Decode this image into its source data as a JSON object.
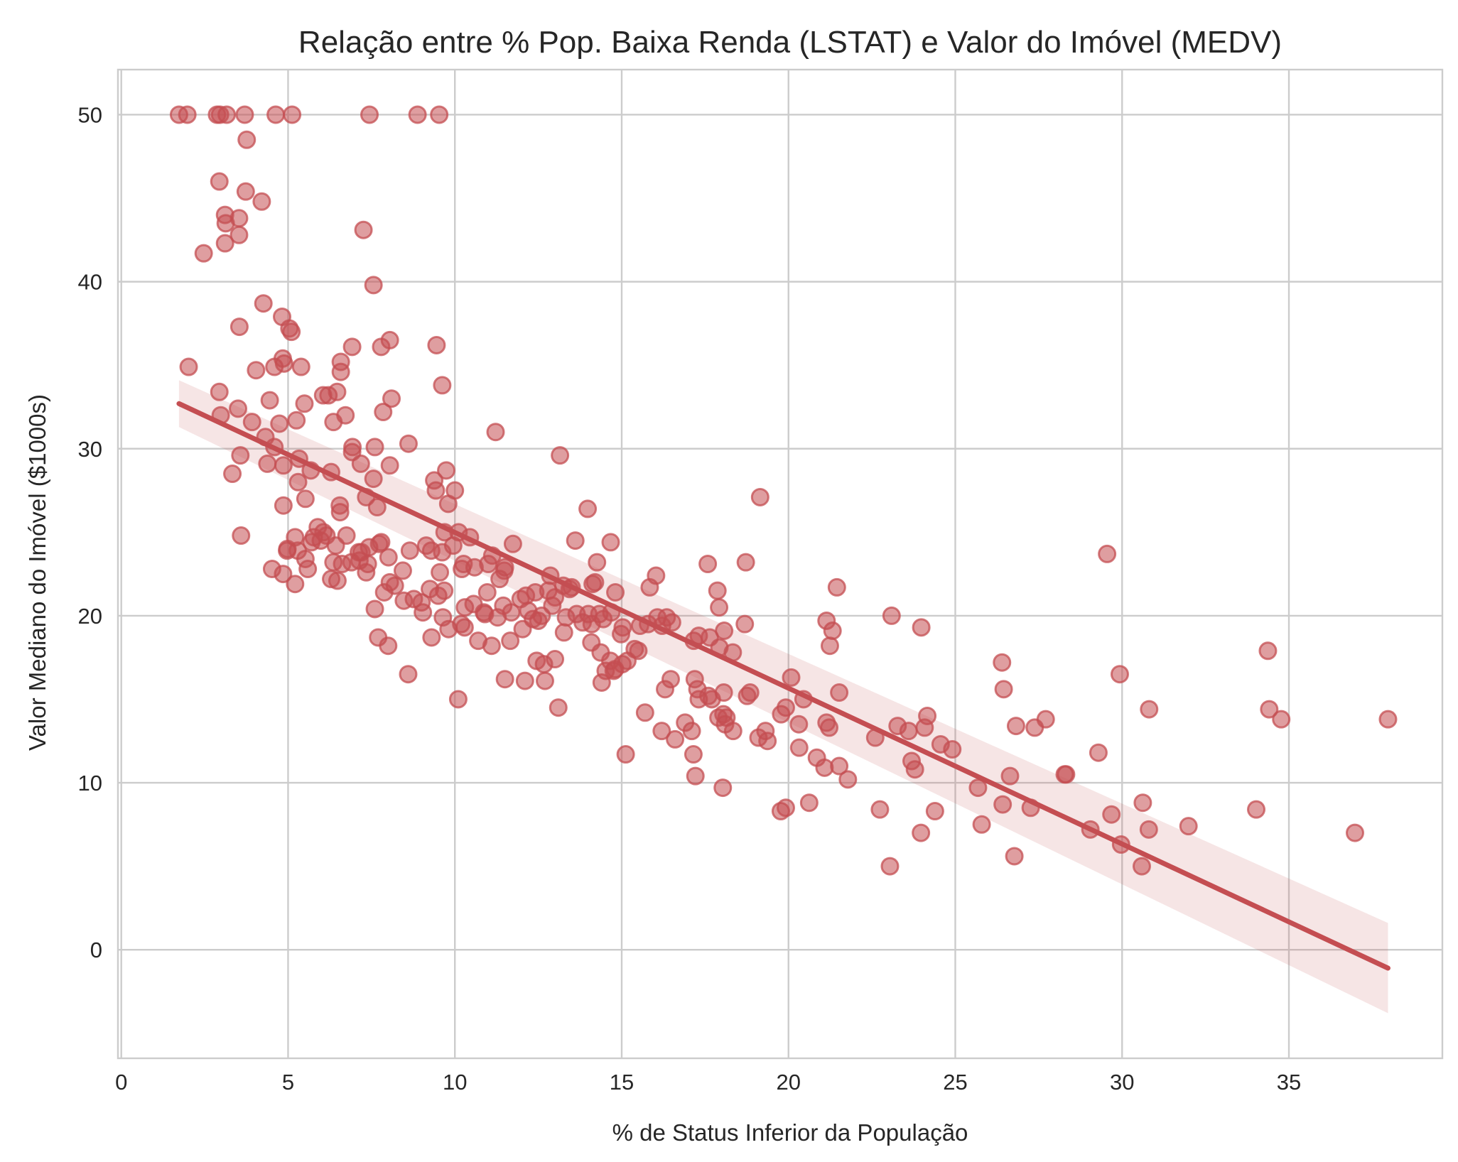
{
  "chart_data": {
    "type": "scatter",
    "title": "Relação entre % Pop. Baixa Renda (LSTAT) e Valor do Imóvel (MEDV)",
    "xlabel": "% de Status Inferior da População",
    "ylabel": "Valor Mediano do Imóvel ($1000s)",
    "xlim": [
      -0.1,
      39.6
    ],
    "ylim": [
      -6.5,
      52.7
    ],
    "xticks": [
      0,
      5,
      10,
      15,
      20,
      25,
      30,
      35
    ],
    "yticks": [
      0,
      10,
      20,
      30,
      40,
      50
    ],
    "grid": true,
    "colors": {
      "points": "#c44e52",
      "line": "#c44e52",
      "band": "#c44e52",
      "grid": "#cccccc"
    },
    "regression": {
      "x": [
        1.73,
        37.97
      ],
      "y": [
        32.7,
        -1.1
      ],
      "ci_x": [
        1.73,
        37.97
      ],
      "ci_upper": [
        34.1,
        1.6
      ],
      "ci_lower": [
        31.3,
        -3.8
      ]
    },
    "points": [
      [
        1.73,
        50
      ],
      [
        1.98,
        50
      ],
      [
        2.87,
        50
      ],
      [
        2.96,
        50
      ],
      [
        3.16,
        50
      ],
      [
        3.7,
        50
      ],
      [
        4.63,
        50
      ],
      [
        5.12,
        50
      ],
      [
        7.44,
        50
      ],
      [
        8.88,
        50
      ],
      [
        9.53,
        50
      ],
      [
        3.76,
        48.5
      ],
      [
        2.94,
        46
      ],
      [
        3.73,
        45.4
      ],
      [
        4.21,
        44.8
      ],
      [
        3.11,
        44
      ],
      [
        3.13,
        43.5
      ],
      [
        3.53,
        43.8
      ],
      [
        7.26,
        43.1
      ],
      [
        3.53,
        42.8
      ],
      [
        3.11,
        42.3
      ],
      [
        2.47,
        41.7
      ],
      [
        7.56,
        39.8
      ],
      [
        4.26,
        38.7
      ],
      [
        4.82,
        37.9
      ],
      [
        5.04,
        37.2
      ],
      [
        3.54,
        37.3
      ],
      [
        5.1,
        37
      ],
      [
        8.05,
        36.5
      ],
      [
        7.79,
        36.1
      ],
      [
        6.92,
        36.1
      ],
      [
        9.45,
        36.2
      ],
      [
        4.84,
        35.4
      ],
      [
        4.88,
        35.1
      ],
      [
        6.58,
        35.2
      ],
      [
        5.39,
        34.9
      ],
      [
        4.59,
        34.9
      ],
      [
        2.02,
        34.9
      ],
      [
        4.04,
        34.7
      ],
      [
        6.58,
        34.6
      ],
      [
        9.62,
        33.8
      ],
      [
        6.21,
        33.2
      ],
      [
        6.05,
        33.2
      ],
      [
        2.94,
        33.4
      ],
      [
        6.47,
        33.4
      ],
      [
        4.45,
        32.9
      ],
      [
        8.1,
        33
      ],
      [
        5.49,
        32.7
      ],
      [
        3.5,
        32.4
      ],
      [
        7.85,
        32.2
      ],
      [
        6.72,
        32
      ],
      [
        2.98,
        32
      ],
      [
        4.74,
        31.5
      ],
      [
        3.92,
        31.6
      ],
      [
        6.36,
        31.6
      ],
      [
        5.25,
        31.7
      ],
      [
        11.22,
        31
      ],
      [
        4.32,
        30.7
      ],
      [
        8.61,
        30.3
      ],
      [
        6.93,
        30.1
      ],
      [
        7.6,
        30.1
      ],
      [
        4.59,
        30.1
      ],
      [
        6.92,
        29.8
      ],
      [
        13.15,
        29.6
      ],
      [
        5.33,
        29.4
      ],
      [
        8.05,
        29
      ],
      [
        3.57,
        29.6
      ],
      [
        4.38,
        29.1
      ],
      [
        4.86,
        29
      ],
      [
        7.18,
        29.1
      ],
      [
        5.68,
        28.7
      ],
      [
        9.38,
        28.1
      ],
      [
        9.74,
        28.7
      ],
      [
        5.3,
        28
      ],
      [
        3.33,
        28.5
      ],
      [
        6.29,
        28.6
      ],
      [
        7.56,
        28.2
      ],
      [
        9.43,
        27.5
      ],
      [
        10.0,
        27.5
      ],
      [
        5.52,
        27
      ],
      [
        7.34,
        27.1
      ],
      [
        9.8,
        26.7
      ],
      [
        7.67,
        26.5
      ],
      [
        4.86,
        26.6
      ],
      [
        6.55,
        26.6
      ],
      [
        6.56,
        26.2
      ],
      [
        13.98,
        26.4
      ],
      [
        6.06,
        25
      ],
      [
        5.89,
        25.3
      ],
      [
        9.69,
        25
      ],
      [
        10.11,
        25
      ],
      [
        4.98,
        24
      ],
      [
        7.79,
        24.4
      ],
      [
        8.65,
        23.9
      ],
      [
        6.15,
        24.8
      ],
      [
        6.75,
        24.8
      ],
      [
        3.59,
        24.8
      ],
      [
        5.21,
        24.7
      ],
      [
        5.7,
        24.4
      ],
      [
        5.98,
        24.5
      ],
      [
        7.2,
        23.8
      ],
      [
        9.14,
        24.2
      ],
      [
        9.62,
        23.8
      ],
      [
        10.26,
        23.1
      ],
      [
        10.59,
        22.9
      ],
      [
        9.29,
        23.9
      ],
      [
        11.12,
        23.6
      ],
      [
        11.74,
        24.3
      ],
      [
        13.61,
        24.5
      ],
      [
        14.67,
        24.4
      ],
      [
        7.73,
        24.3
      ],
      [
        4.97,
        23.9
      ],
      [
        5.29,
        23.9
      ],
      [
        5.52,
        23.4
      ],
      [
        5.77,
        24.7
      ],
      [
        6.43,
        24.2
      ],
      [
        7.39,
        23.1
      ],
      [
        7.14,
        23.3
      ],
      [
        8.01,
        23.5
      ],
      [
        7.12,
        23.8
      ],
      [
        7.43,
        24.1
      ],
      [
        6.62,
        23.1
      ],
      [
        8.44,
        22.7
      ],
      [
        9.55,
        22.6
      ],
      [
        10.21,
        22.8
      ],
      [
        11.48,
        22.7
      ],
      [
        12.86,
        22.4
      ],
      [
        14.26,
        23.2
      ],
      [
        15.84,
        21.7
      ],
      [
        16.03,
        22.4
      ],
      [
        17.58,
        23.1
      ],
      [
        18.72,
        23.2
      ],
      [
        4.52,
        22.8
      ],
      [
        4.85,
        22.5
      ],
      [
        5.21,
        21.9
      ],
      [
        5.59,
        22.8
      ],
      [
        6.29,
        22.2
      ],
      [
        6.48,
        22.1
      ],
      [
        7.34,
        22.6
      ],
      [
        7.88,
        21.4
      ],
      [
        8.47,
        20.9
      ],
      [
        9.25,
        21.6
      ],
      [
        9.68,
        21.5
      ],
      [
        10.97,
        21.4
      ],
      [
        11.34,
        22.2
      ],
      [
        12.13,
        21.2
      ],
      [
        12.41,
        21.4
      ],
      [
        13.44,
        21.6
      ],
      [
        14.13,
        21.9
      ],
      [
        14.81,
        21.4
      ],
      [
        15.55,
        19.4
      ],
      [
        16.07,
        19.9
      ],
      [
        16.35,
        19.9
      ],
      [
        17.31,
        18.8
      ],
      [
        17.92,
        20.5
      ],
      [
        17.87,
        21.5
      ],
      [
        18.07,
        19.1
      ],
      [
        18.69,
        19.5
      ],
      [
        20.08,
        16.3
      ],
      [
        21.14,
        19.7
      ],
      [
        21.24,
        18.2
      ],
      [
        21.32,
        19.1
      ],
      [
        21.45,
        21.7
      ],
      [
        23.09,
        20
      ],
      [
        23.98,
        19.3
      ],
      [
        6.36,
        23.2
      ],
      [
        6.9,
        23.2
      ],
      [
        7.6,
        20.4
      ],
      [
        8.2,
        21.8
      ],
      [
        8.77,
        21
      ],
      [
        9.04,
        20.2
      ],
      [
        9.64,
        19.9
      ],
      [
        10.19,
        19.5
      ],
      [
        10.56,
        20.7
      ],
      [
        10.87,
        20.2
      ],
      [
        11.28,
        19.9
      ],
      [
        11.69,
        20.2
      ],
      [
        11.97,
        21
      ],
      [
        12.34,
        19.8
      ],
      [
        12.6,
        20
      ],
      [
        12.92,
        20.6
      ],
      [
        13.33,
        19.9
      ],
      [
        13.65,
        20.1
      ],
      [
        14.1,
        19.5
      ],
      [
        14.33,
        20.1
      ],
      [
        14.69,
        20.2
      ],
      [
        15.03,
        19.3
      ],
      [
        15.39,
        18
      ],
      [
        15.79,
        19.5
      ],
      [
        16.21,
        19.4
      ],
      [
        16.51,
        19.6
      ],
      [
        17.16,
        18.5
      ],
      [
        17.64,
        18.7
      ],
      [
        17.93,
        18.1
      ],
      [
        18.33,
        17.8
      ],
      [
        7.7,
        18.7
      ],
      [
        8.0,
        18.2
      ],
      [
        9.3,
        18.7
      ],
      [
        9.81,
        19.2
      ],
      [
        10.29,
        19.3
      ],
      [
        10.7,
        18.5
      ],
      [
        11.1,
        18.2
      ],
      [
        11.66,
        18.5
      ],
      [
        12.03,
        19.2
      ],
      [
        12.45,
        17.3
      ],
      [
        12.67,
        17.1
      ],
      [
        13.0,
        17.4
      ],
      [
        13.27,
        19
      ],
      [
        14.09,
        18.4
      ],
      [
        14.37,
        17.8
      ],
      [
        14.52,
        16.7
      ],
      [
        14.66,
        17.3
      ],
      [
        14.8,
        16.8
      ],
      [
        15.02,
        17.1
      ],
      [
        15.17,
        17.3
      ],
      [
        16.47,
        16.2
      ],
      [
        17.19,
        16.2
      ],
      [
        17.27,
        15.6
      ],
      [
        17.6,
        15.2
      ],
      [
        18.06,
        15.4
      ],
      [
        18.76,
        15.2
      ],
      [
        19.31,
        13.1
      ],
      [
        20.45,
        15
      ],
      [
        21.52,
        15.4
      ],
      [
        8.05,
        22
      ],
      [
        9.0,
        20.8
      ],
      [
        9.5,
        21.2
      ],
      [
        10.3,
        20.5
      ],
      [
        10.9,
        20.1
      ],
      [
        11.45,
        20.6
      ],
      [
        12.5,
        19.7
      ],
      [
        13.0,
        21.1
      ],
      [
        13.5,
        21.7
      ],
      [
        14.0,
        20.1
      ],
      [
        14.45,
        19.8
      ],
      [
        14.98,
        18.9
      ],
      [
        15.5,
        17.9
      ],
      [
        8.6,
        16.5
      ],
      [
        10.1,
        15
      ],
      [
        11.5,
        16.2
      ],
      [
        12.1,
        16.1
      ],
      [
        12.7,
        16.1
      ],
      [
        13.1,
        14.5
      ],
      [
        14.4,
        16
      ],
      [
        14.76,
        16.7
      ],
      [
        15.12,
        11.7
      ],
      [
        15.7,
        14.2
      ],
      [
        16.2,
        13.1
      ],
      [
        16.3,
        15.6
      ],
      [
        16.6,
        12.6
      ],
      [
        16.9,
        13.6
      ],
      [
        17.1,
        13.1
      ],
      [
        17.15,
        11.7
      ],
      [
        17.21,
        10.4
      ],
      [
        17.31,
        15
      ],
      [
        17.7,
        15
      ],
      [
        17.9,
        13.9
      ],
      [
        18.05,
        14.1
      ],
      [
        18.1,
        13.5
      ],
      [
        18.14,
        13.9
      ],
      [
        18.34,
        13.1
      ],
      [
        18.85,
        15.4
      ],
      [
        19.1,
        12.7
      ],
      [
        19.37,
        12.5
      ],
      [
        19.78,
        14.1
      ],
      [
        19.92,
        14.5
      ],
      [
        20.31,
        13.5
      ],
      [
        20.32,
        12.1
      ],
      [
        20.62,
        8.8
      ],
      [
        20.85,
        11.5
      ],
      [
        21.08,
        10.9
      ],
      [
        21.14,
        13.6
      ],
      [
        21.22,
        13.3
      ],
      [
        21.52,
        11
      ],
      [
        21.78,
        10.2
      ],
      [
        22.6,
        12.7
      ],
      [
        22.74,
        8.4
      ],
      [
        23.04,
        5
      ],
      [
        23.27,
        13.4
      ],
      [
        23.69,
        11.3
      ],
      [
        23.6,
        13.1
      ],
      [
        23.79,
        10.8
      ],
      [
        24.08,
        13.3
      ],
      [
        24.16,
        14
      ],
      [
        24.39,
        8.3
      ],
      [
        24.56,
        12.3
      ],
      [
        24.91,
        12
      ],
      [
        25.68,
        9.7
      ],
      [
        25.79,
        7.5
      ],
      [
        26.42,
        8.7
      ],
      [
        26.45,
        15.6
      ],
      [
        26.64,
        10.4
      ],
      [
        26.77,
        5.6
      ],
      [
        26.82,
        13.4
      ],
      [
        27.26,
        8.5
      ],
      [
        27.38,
        13.3
      ],
      [
        27.71,
        13.8
      ],
      [
        28.28,
        10.5
      ],
      [
        28.32,
        10.5
      ],
      [
        29.05,
        7.2
      ],
      [
        29.29,
        11.8
      ],
      [
        29.55,
        23.7
      ],
      [
        29.68,
        8.1
      ],
      [
        29.93,
        16.5
      ],
      [
        29.97,
        6.3
      ],
      [
        30.59,
        5
      ],
      [
        30.62,
        8.8
      ],
      [
        30.81,
        14.4
      ],
      [
        31.99,
        7.4
      ],
      [
        34.02,
        8.4
      ],
      [
        34.37,
        17.9
      ],
      [
        34.41,
        14.4
      ],
      [
        34.77,
        13.8
      ],
      [
        36.98,
        7
      ],
      [
        37.97,
        13.8
      ],
      [
        26.4,
        17.2
      ],
      [
        19.15,
        27.1
      ],
      [
        18.03,
        9.7
      ],
      [
        19.77,
        8.3
      ],
      [
        19.92,
        8.5
      ],
      [
        23.97,
        7
      ],
      [
        30.8,
        7.2
      ],
      [
        13.83,
        19.6
      ],
      [
        12.8,
        21.5
      ],
      [
        11.5,
        22.9
      ],
      [
        12.2,
        20.3
      ],
      [
        10.45,
        24.7
      ],
      [
        9.95,
        24.2
      ],
      [
        11.0,
        23.1
      ],
      [
        13.25,
        21.8
      ],
      [
        14.2,
        22
      ]
    ]
  }
}
